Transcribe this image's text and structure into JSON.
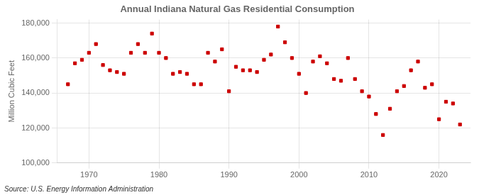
{
  "chart_data": {
    "type": "scatter",
    "title": "Annual Indiana Natural Gas Residential Consumption",
    "ylabel": "Million Cubic Feet",
    "annotations": [
      "Source: U.S. Energy Information Administration"
    ],
    "x": [
      1967,
      1968,
      1969,
      1970,
      1971,
      1972,
      1973,
      1974,
      1975,
      1976,
      1977,
      1978,
      1979,
      1980,
      1981,
      1982,
      1983,
      1984,
      1985,
      1986,
      1987,
      1988,
      1989,
      1990,
      1991,
      1992,
      1993,
      1994,
      1995,
      1996,
      1997,
      1998,
      1999,
      2000,
      2001,
      2002,
      2003,
      2004,
      2005,
      2006,
      2007,
      2008,
      2009,
      2010,
      2011,
      2012,
      2013,
      2014,
      2015,
      2016,
      2017,
      2018,
      2019,
      2020,
      2021,
      2022,
      2023
    ],
    "values": [
      145000,
      157000,
      159000,
      163000,
      168000,
      156000,
      153000,
      152000,
      151000,
      163000,
      168000,
      163000,
      174000,
      163000,
      160000,
      151000,
      152000,
      151000,
      145000,
      145000,
      163000,
      158000,
      165000,
      141000,
      155000,
      153000,
      153000,
      152000,
      159000,
      162000,
      178000,
      169000,
      160000,
      151000,
      140000,
      158000,
      161000,
      157000,
      148000,
      147000,
      160000,
      148000,
      141000,
      138000,
      128000,
      116000,
      131000,
      141000,
      144000,
      153000,
      158000,
      143000,
      145000,
      125000,
      135000,
      134000,
      122000
    ],
    "color": "#cc0000",
    "marker": "square",
    "xlim": [
      1965.5,
      2024.5
    ],
    "xticks": [
      1970,
      1980,
      1990,
      2000,
      2010,
      2020
    ],
    "ylim": [
      100000,
      182000
    ],
    "yticks": [
      {
        "value": 100000,
        "label": "100,000"
      },
      {
        "value": 120000,
        "label": "120,000"
      },
      {
        "value": 140000,
        "label": "140,000"
      },
      {
        "value": 160000,
        "label": "160,000"
      },
      {
        "value": 180000,
        "label": "180,000"
      }
    ],
    "grid": true
  }
}
